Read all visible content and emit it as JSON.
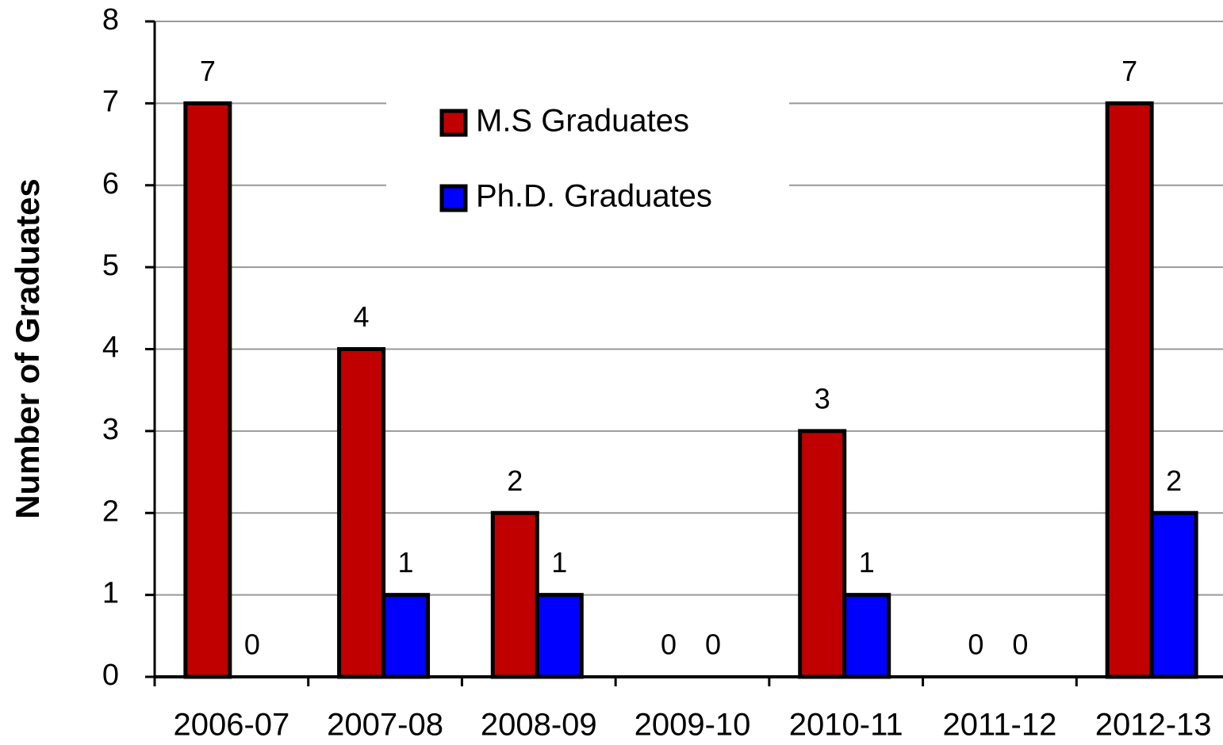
{
  "chart_data": {
    "type": "bar",
    "y_label": "Number of  Graduates",
    "categories": [
      "2006-07",
      "2007-08",
      "2008-09",
      "2009-10",
      "2010-11",
      "2011-12",
      "2012-13"
    ],
    "series": [
      {
        "name": "M.S Graduates",
        "color": "#c00000",
        "values": [
          7,
          4,
          2,
          0,
          3,
          0,
          7
        ]
      },
      {
        "name": "Ph.D. Graduates",
        "color": "#0000ff",
        "values": [
          0,
          1,
          1,
          0,
          1,
          0,
          2
        ]
      }
    ],
    "ylim": [
      0,
      8
    ],
    "yticks": [
      0,
      1,
      2,
      3,
      4,
      5,
      6,
      7,
      8
    ],
    "grid": true,
    "legend": "top"
  }
}
